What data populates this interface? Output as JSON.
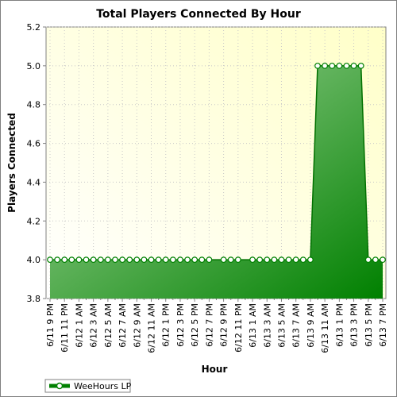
{
  "chart_data": {
    "type": "area",
    "title": "Total Players Connected By Hour",
    "xlabel": "Hour",
    "ylabel": "Players Connected",
    "ylim": [
      3.8,
      5.2
    ],
    "yticks": [
      "3.8",
      "4.0",
      "4.2",
      "4.4",
      "4.6",
      "4.8",
      "5.0",
      "5.2"
    ],
    "grid": true,
    "legend_position": "bottom-left",
    "categories": [
      "6/11 9 PM",
      "6/11 10 PM",
      "6/11 11 PM",
      "6/12 12 AM",
      "6/12 1 AM",
      "6/12 2 AM",
      "6/12 3 AM",
      "6/12 4 AM",
      "6/12 5 AM",
      "6/12 6 AM",
      "6/12 7 AM",
      "6/12 8 AM",
      "6/12 9 AM",
      "6/12 10 AM",
      "6/12 11 AM",
      "6/12 12 PM",
      "6/12 1 PM",
      "6/12 2 PM",
      "6/12 3 PM",
      "6/12 4 PM",
      "6/12 5 PM",
      "6/12 6 PM",
      "6/12 7 PM",
      "6/12 8 PM",
      "6/12 9 PM",
      "6/12 10 PM",
      "6/12 11 PM",
      "6/13 12 AM",
      "6/13 1 AM",
      "6/13 2 AM",
      "6/13 3 AM",
      "6/13 4 AM",
      "6/13 5 AM",
      "6/13 6 AM",
      "6/13 7 AM",
      "6/13 8 AM",
      "6/13 9 AM",
      "6/13 10 AM",
      "6/13 11 AM",
      "6/13 12 PM",
      "6/13 1 PM",
      "6/13 2 PM",
      "6/13 3 PM",
      "6/13 4 PM",
      "6/13 5 PM",
      "6/13 6 PM",
      "6/13 7 PM"
    ],
    "tick_labels": [
      "6/11 9 PM",
      "6/11 11 PM",
      "6/12 1 AM",
      "6/12 3 AM",
      "6/12 5 AM",
      "6/12 7 AM",
      "6/12 9 AM",
      "6/12 11 AM",
      "6/12 1 PM",
      "6/12 3 PM",
      "6/12 5 PM",
      "6/12 7 PM",
      "6/12 9 PM",
      "6/12 11 PM",
      "6/13 1 AM",
      "6/13 3 AM",
      "6/13 5 AM",
      "6/13 7 AM",
      "6/13 9 AM",
      "6/13 11 AM",
      "6/13 1 PM",
      "6/13 3 PM",
      "6/13 5 PM",
      "6/13 7 PM"
    ],
    "series": [
      {
        "name": "WeeHours LP",
        "color": "#008000",
        "values": [
          4,
          4,
          4,
          4,
          4,
          4,
          4,
          4,
          4,
          4,
          4,
          4,
          4,
          4,
          4,
          4,
          4,
          4,
          4,
          4,
          4,
          4,
          4,
          4,
          4,
          4,
          4,
          4,
          4,
          4,
          4,
          4,
          4,
          4,
          4,
          4,
          4,
          5,
          5,
          5,
          5,
          5,
          5,
          5,
          4,
          4,
          4
        ],
        "marker": "circle",
        "hidden_markers": [
          23,
          27
        ]
      }
    ],
    "colors": {
      "plot_bg_light": "#fffff0",
      "plot_bg_yellow": "#ffffc8",
      "area_light": "#a8d8a0",
      "area_dark": "#008000",
      "line": "#007000"
    }
  }
}
